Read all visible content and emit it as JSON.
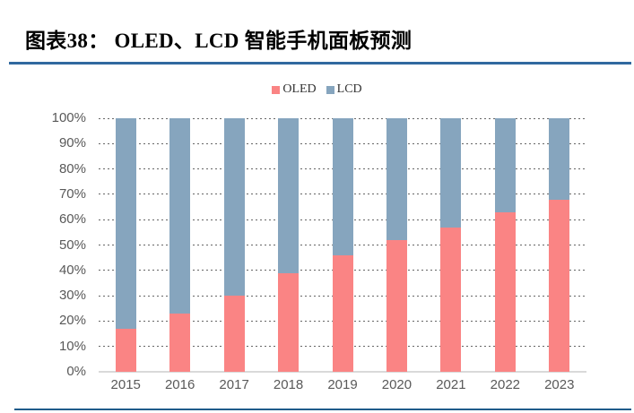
{
  "header": {
    "caption": "图表38：  OLED、LCD 智能手机面板预测"
  },
  "colors": {
    "rule_top": "#31699F",
    "rule_bottom": "#1F5C8B",
    "axis_text": "#595959",
    "gridline": "#666666",
    "baseline": "#D9D9D9"
  },
  "chart_data": {
    "type": "bar",
    "stacked": true,
    "title": "图表38：  OLED、LCD 智能手机面板预测",
    "categories": [
      "2015",
      "2016",
      "2017",
      "2018",
      "2019",
      "2020",
      "2021",
      "2022",
      "2023"
    ],
    "series": [
      {
        "name": "OLED",
        "color": "#FA8484",
        "values": [
          17,
          23,
          30,
          39,
          46,
          52,
          57,
          63,
          68
        ]
      },
      {
        "name": "LCD",
        "color": "#86A5BE",
        "values": [
          83,
          77,
          70,
          61,
          54,
          48,
          43,
          37,
          32
        ]
      }
    ],
    "unit": "percent",
    "ylim": [
      0,
      100
    ],
    "ytick_step": 10,
    "yticks": [
      "100%",
      "90%",
      "80%",
      "70%",
      "60%",
      "50%",
      "40%",
      "30%",
      "20%",
      "10%",
      "0%"
    ],
    "legend_position": "top-center",
    "grid": "horizontal-dashed",
    "xlabel": "",
    "ylabel": ""
  }
}
